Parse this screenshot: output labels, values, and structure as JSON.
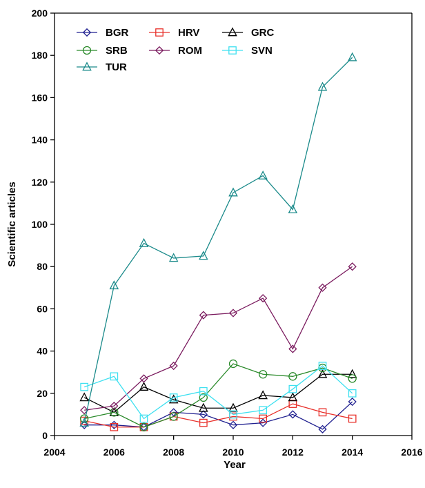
{
  "chart_data": {
    "type": "line",
    "xlabel": "Year",
    "ylabel": "Scientific articles",
    "xlim": [
      2004,
      2016
    ],
    "ylim": [
      0,
      200
    ],
    "x_ticks": [
      2004,
      2006,
      2008,
      2010,
      2012,
      2014,
      2016
    ],
    "y_ticks": [
      0,
      20,
      40,
      60,
      80,
      100,
      120,
      140,
      160,
      180,
      200
    ],
    "grid": false,
    "legend_position": "top-left",
    "series": [
      {
        "name": "BGR",
        "color": "#1f1f8f",
        "marker": "diamond",
        "x": [
          2005,
          2006,
          2007,
          2008,
          2009,
          2010,
          2011,
          2012,
          2013,
          2014
        ],
        "y": [
          5,
          5,
          4,
          11,
          10,
          5,
          6,
          10,
          3,
          16
        ]
      },
      {
        "name": "HRV",
        "color": "#e8302a",
        "marker": "square",
        "x": [
          2005,
          2006,
          2007,
          2008,
          2009,
          2010,
          2011,
          2012,
          2013,
          2014
        ],
        "y": [
          7,
          4,
          4,
          9,
          6,
          9,
          8,
          15,
          11,
          8
        ]
      },
      {
        "name": "GRC",
        "color": "#000000",
        "marker": "triangle",
        "x": [
          2005,
          2006,
          2007,
          2008,
          2009,
          2010,
          2011,
          2012,
          2013,
          2014
        ],
        "y": [
          18,
          11,
          23,
          17,
          13,
          13,
          19,
          18,
          29,
          29
        ]
      },
      {
        "name": "SRB",
        "color": "#2a8a2a",
        "marker": "circle",
        "x": [
          2005,
          2006,
          2007,
          2008,
          2009,
          2010,
          2011,
          2012,
          2013,
          2014
        ],
        "y": [
          8,
          11,
          4,
          9,
          18,
          34,
          29,
          28,
          32,
          27
        ]
      },
      {
        "name": "ROM",
        "color": "#7a1a5e",
        "marker": "diamond",
        "x": [
          2005,
          2006,
          2007,
          2008,
          2009,
          2010,
          2011,
          2012,
          2013,
          2014
        ],
        "y": [
          12,
          14,
          27,
          33,
          57,
          58,
          65,
          41,
          70,
          80
        ]
      },
      {
        "name": "SVN",
        "color": "#3fe0f0",
        "marker": "square",
        "x": [
          2005,
          2006,
          2007,
          2008,
          2009,
          2010,
          2011,
          2012,
          2013,
          2014
        ],
        "y": [
          23,
          28,
          8,
          18,
          21,
          10,
          12,
          22,
          33,
          20
        ]
      },
      {
        "name": "TUR",
        "color": "#1a8a8a",
        "marker": "triangle",
        "x": [
          2005,
          2006,
          2007,
          2008,
          2009,
          2010,
          2011,
          2012,
          2013,
          2014
        ],
        "y": [
          6,
          71,
          91,
          84,
          85,
          115,
          123,
          107,
          165,
          179
        ]
      }
    ]
  }
}
